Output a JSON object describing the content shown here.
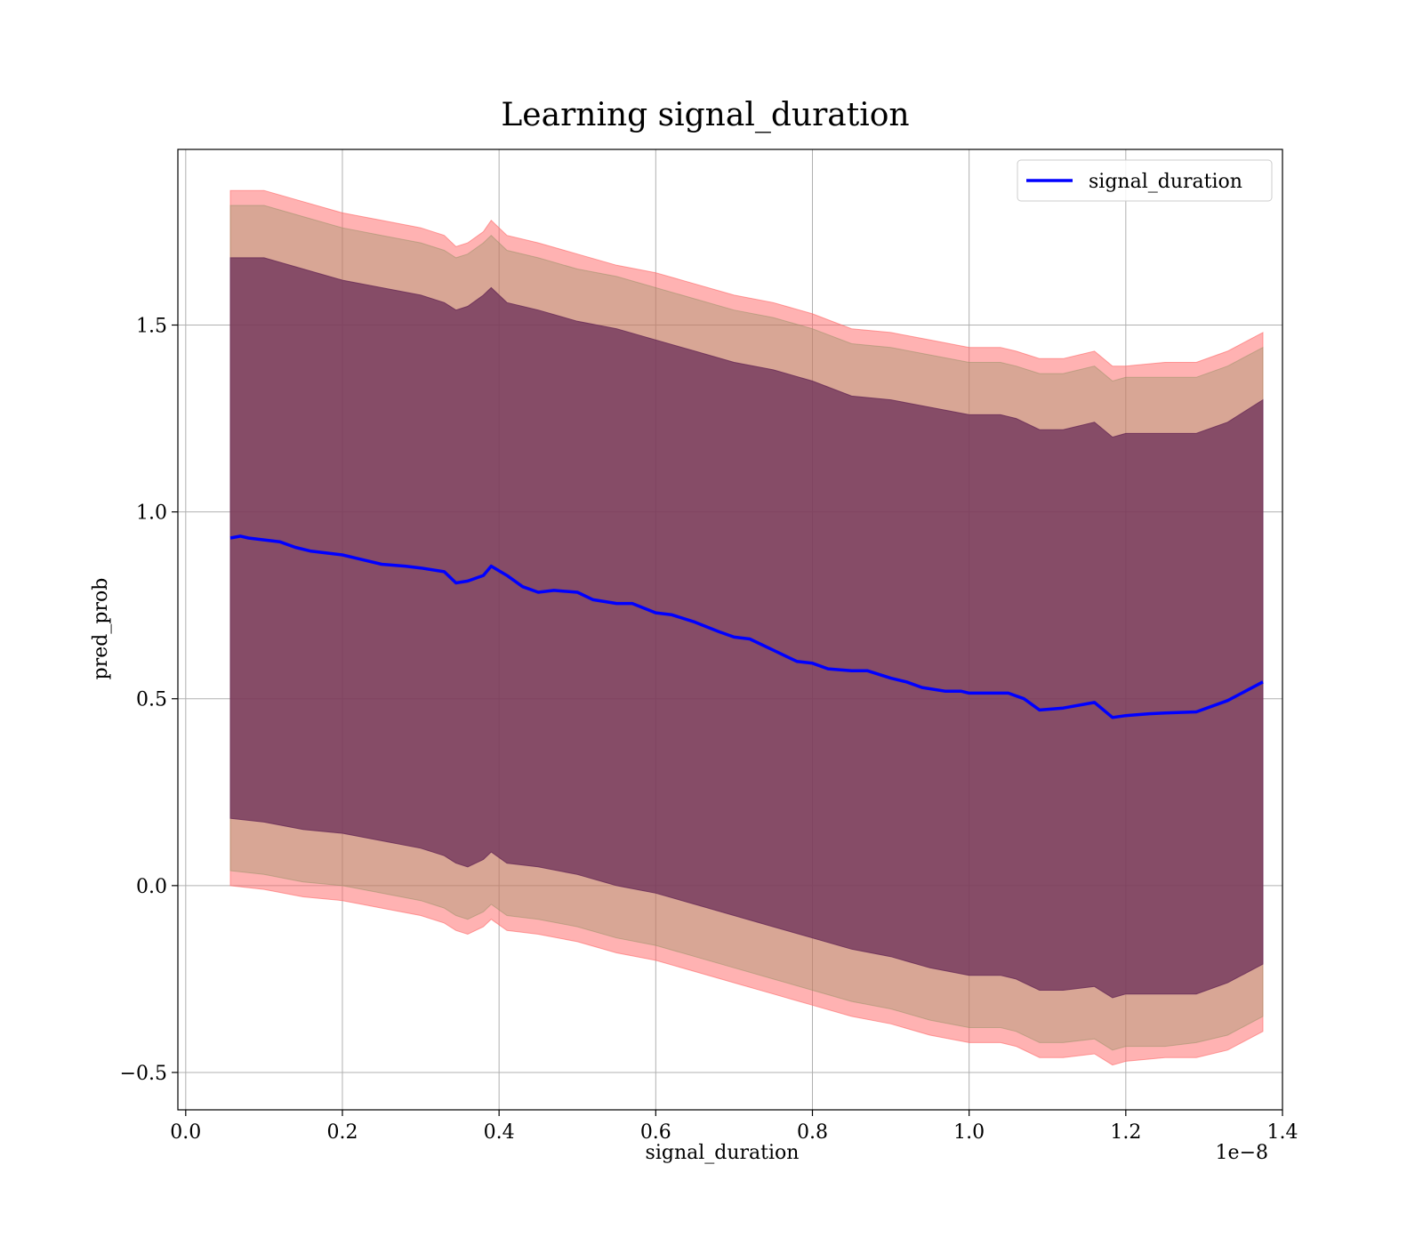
{
  "chart_data": {
    "type": "line",
    "title": "Learning signal_duration",
    "xlabel": "signal_duration",
    "ylabel": "pred_prob",
    "x_offset_text": "1e−8",
    "xlim": [
      -0.01,
      1.4
    ],
    "ylim": [
      -0.6,
      1.97
    ],
    "grid": true,
    "legend_position": "top-right",
    "x_ticks": [
      0.0,
      0.2,
      0.4,
      0.6,
      0.8,
      1.0,
      1.2,
      1.4
    ],
    "x_tick_labels": [
      "0.0",
      "0.2",
      "0.4",
      "0.6",
      "0.8",
      "1.0",
      "1.2",
      "1.4"
    ],
    "y_ticks": [
      -0.5,
      0.0,
      0.5,
      1.0,
      1.5
    ],
    "y_tick_labels": [
      "−0.5",
      "0.0",
      "0.5",
      "1.0",
      "1.5"
    ],
    "series": [
      {
        "name": "signal_duration",
        "color": "#0000ff",
        "x": [
          0.057,
          0.07,
          0.08,
          0.1,
          0.12,
          0.14,
          0.16,
          0.18,
          0.2,
          0.22,
          0.25,
          0.28,
          0.3,
          0.33,
          0.345,
          0.36,
          0.38,
          0.39,
          0.41,
          0.43,
          0.45,
          0.47,
          0.5,
          0.52,
          0.55,
          0.57,
          0.6,
          0.62,
          0.65,
          0.68,
          0.7,
          0.72,
          0.75,
          0.78,
          0.8,
          0.82,
          0.85,
          0.87,
          0.9,
          0.92,
          0.94,
          0.97,
          0.99,
          1.0,
          1.03,
          1.05,
          1.07,
          1.09,
          1.12,
          1.16,
          1.183,
          1.2,
          1.23,
          1.25,
          1.29,
          1.33,
          1.375
        ],
        "y": [
          0.93,
          0.935,
          0.93,
          0.925,
          0.92,
          0.905,
          0.895,
          0.89,
          0.885,
          0.875,
          0.86,
          0.855,
          0.85,
          0.84,
          0.81,
          0.815,
          0.83,
          0.855,
          0.83,
          0.8,
          0.785,
          0.79,
          0.785,
          0.765,
          0.755,
          0.755,
          0.73,
          0.725,
          0.705,
          0.68,
          0.665,
          0.66,
          0.63,
          0.6,
          0.595,
          0.58,
          0.575,
          0.575,
          0.555,
          0.545,
          0.53,
          0.52,
          0.52,
          0.515,
          0.515,
          0.515,
          0.5,
          0.47,
          0.475,
          0.49,
          0.45,
          0.455,
          0.46,
          0.462,
          0.465,
          0.495,
          0.545
        ]
      }
    ],
    "bands": [
      {
        "color": "#ff6666",
        "opacity": 0.5,
        "x": [
          0.057,
          0.1,
          0.15,
          0.2,
          0.25,
          0.3,
          0.33,
          0.345,
          0.36,
          0.38,
          0.39,
          0.41,
          0.45,
          0.5,
          0.55,
          0.6,
          0.65,
          0.7,
          0.75,
          0.8,
          0.85,
          0.9,
          0.95,
          1.0,
          1.04,
          1.06,
          1.09,
          1.12,
          1.16,
          1.183,
          1.2,
          1.25,
          1.29,
          1.33,
          1.375
        ],
        "upper": [
          1.86,
          1.86,
          1.83,
          1.8,
          1.78,
          1.76,
          1.74,
          1.71,
          1.72,
          1.75,
          1.78,
          1.74,
          1.72,
          1.69,
          1.66,
          1.64,
          1.61,
          1.58,
          1.56,
          1.53,
          1.49,
          1.48,
          1.46,
          1.44,
          1.44,
          1.43,
          1.41,
          1.41,
          1.43,
          1.39,
          1.39,
          1.4,
          1.4,
          1.43,
          1.48
        ],
        "lower": [
          0.0,
          -0.01,
          -0.03,
          -0.04,
          -0.06,
          -0.08,
          -0.1,
          -0.12,
          -0.13,
          -0.11,
          -0.09,
          -0.12,
          -0.13,
          -0.15,
          -0.18,
          -0.2,
          -0.23,
          -0.26,
          -0.29,
          -0.32,
          -0.35,
          -0.37,
          -0.4,
          -0.42,
          -0.42,
          -0.43,
          -0.46,
          -0.46,
          -0.45,
          -0.48,
          -0.47,
          -0.46,
          -0.46,
          -0.44,
          -0.39
        ]
      },
      {
        "color": "#8f8f5f",
        "opacity": 0.35,
        "x": [
          0.057,
          0.1,
          0.15,
          0.2,
          0.25,
          0.3,
          0.33,
          0.345,
          0.36,
          0.38,
          0.39,
          0.41,
          0.45,
          0.5,
          0.55,
          0.6,
          0.65,
          0.7,
          0.75,
          0.8,
          0.85,
          0.9,
          0.95,
          1.0,
          1.04,
          1.06,
          1.09,
          1.12,
          1.16,
          1.183,
          1.2,
          1.25,
          1.29,
          1.33,
          1.375
        ],
        "upper": [
          1.82,
          1.82,
          1.79,
          1.76,
          1.74,
          1.72,
          1.7,
          1.68,
          1.69,
          1.72,
          1.74,
          1.7,
          1.68,
          1.65,
          1.63,
          1.6,
          1.57,
          1.54,
          1.52,
          1.49,
          1.45,
          1.44,
          1.42,
          1.4,
          1.4,
          1.39,
          1.37,
          1.37,
          1.39,
          1.35,
          1.36,
          1.36,
          1.36,
          1.39,
          1.44
        ],
        "lower": [
          0.04,
          0.03,
          0.01,
          0.0,
          -0.02,
          -0.04,
          -0.06,
          -0.08,
          -0.09,
          -0.07,
          -0.05,
          -0.08,
          -0.09,
          -0.11,
          -0.14,
          -0.16,
          -0.19,
          -0.22,
          -0.25,
          -0.28,
          -0.31,
          -0.33,
          -0.36,
          -0.38,
          -0.38,
          -0.39,
          -0.42,
          -0.42,
          -0.41,
          -0.44,
          -0.43,
          -0.43,
          -0.42,
          -0.4,
          -0.35
        ]
      },
      {
        "color": "#6b2e58",
        "opacity": 0.75,
        "x": [
          0.057,
          0.1,
          0.15,
          0.2,
          0.25,
          0.3,
          0.33,
          0.345,
          0.36,
          0.38,
          0.39,
          0.41,
          0.45,
          0.5,
          0.55,
          0.6,
          0.65,
          0.7,
          0.75,
          0.8,
          0.85,
          0.9,
          0.95,
          1.0,
          1.04,
          1.06,
          1.09,
          1.12,
          1.16,
          1.183,
          1.2,
          1.25,
          1.29,
          1.33,
          1.375
        ],
        "upper": [
          1.68,
          1.68,
          1.65,
          1.62,
          1.6,
          1.58,
          1.56,
          1.54,
          1.55,
          1.58,
          1.6,
          1.56,
          1.54,
          1.51,
          1.49,
          1.46,
          1.43,
          1.4,
          1.38,
          1.35,
          1.31,
          1.3,
          1.28,
          1.26,
          1.26,
          1.25,
          1.22,
          1.22,
          1.24,
          1.2,
          1.21,
          1.21,
          1.21,
          1.24,
          1.3
        ],
        "lower": [
          0.18,
          0.17,
          0.15,
          0.14,
          0.12,
          0.1,
          0.08,
          0.06,
          0.05,
          0.07,
          0.09,
          0.06,
          0.05,
          0.03,
          0.0,
          -0.02,
          -0.05,
          -0.08,
          -0.11,
          -0.14,
          -0.17,
          -0.19,
          -0.22,
          -0.24,
          -0.24,
          -0.25,
          -0.28,
          -0.28,
          -0.27,
          -0.3,
          -0.29,
          -0.29,
          -0.29,
          -0.26,
          -0.21
        ]
      }
    ]
  }
}
